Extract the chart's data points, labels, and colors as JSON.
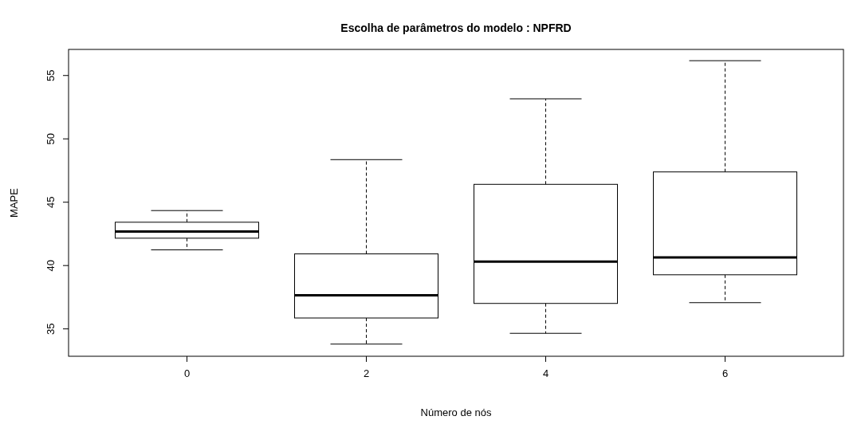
{
  "chart_data": {
    "type": "box",
    "title": "Escolha de parâmetros do modelo : NPFRD",
    "xlabel": "Número de nós",
    "ylabel": "MAPE",
    "categories": [
      "0",
      "2",
      "4",
      "6"
    ],
    "boxes": [
      {
        "low": 41.24,
        "q1": 42.16,
        "median": 42.69,
        "q3": 43.42,
        "high": 44.34
      },
      {
        "low": 33.8,
        "q1": 35.86,
        "median": 37.66,
        "q3": 40.92,
        "high": 48.36
      },
      {
        "low": 34.65,
        "q1": 37.01,
        "median": 40.31,
        "q3": 46.41,
        "high": 53.16
      },
      {
        "low": 37.07,
        "q1": 39.27,
        "median": 40.64,
        "q3": 47.39,
        "high": 56.17
      }
    ],
    "color": "#000000",
    "ylim": [
      32.84,
      57.06
    ],
    "yticks": [
      35,
      40,
      45,
      50,
      55
    ],
    "grid": false
  }
}
